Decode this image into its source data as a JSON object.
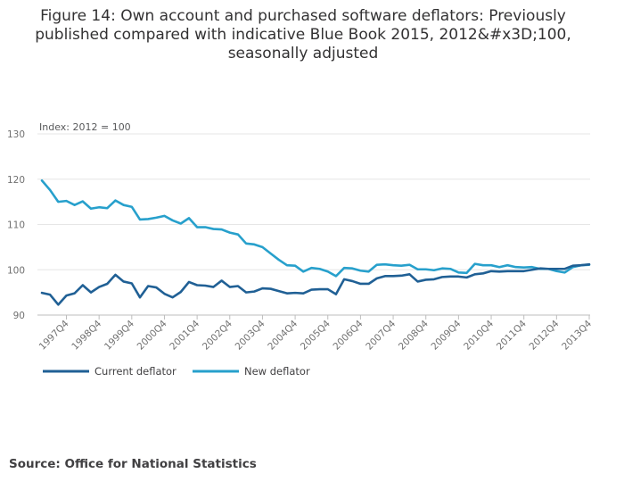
{
  "chart_data": {
    "type": "line",
    "title": "Figure 14: Own account and purchased software deflators: Previously published compared with indicative Blue Book 2015, 2012&#x3D;100, seasonally adjusted",
    "y_unit_label": "Index: 2012 = 100",
    "ylim": [
      90,
      130
    ],
    "yticks": [
      90,
      100,
      110,
      120,
      130
    ],
    "x_tick_labels": [
      "1997Q4",
      "1998Q4",
      "1999Q4",
      "2000Q4",
      "2001Q4",
      "2002Q4",
      "2003Q4",
      "2004Q4",
      "2005Q4",
      "2006Q4",
      "2007Q4",
      "2008Q4",
      "2009Q4",
      "2010Q4",
      "2011Q4",
      "2012Q4",
      "2013Q4"
    ],
    "x_start_label": "1997Q1",
    "n_points": 68,
    "series": [
      {
        "name": "Current deflator",
        "color": "#206095",
        "values": [
          94.9,
          94.5,
          92.3,
          94.3,
          94.8,
          96.6,
          95.0,
          96.2,
          96.9,
          98.9,
          97.4,
          97.0,
          93.9,
          96.4,
          96.1,
          94.7,
          93.9,
          95.1,
          97.3,
          96.6,
          96.5,
          96.2,
          97.6,
          96.2,
          96.4,
          95.0,
          95.2,
          95.9,
          95.8,
          95.3,
          94.8,
          94.9,
          94.8,
          95.6,
          95.7,
          95.7,
          94.6,
          97.9,
          97.5,
          96.9,
          96.9,
          98.1,
          98.6,
          98.6,
          98.7,
          99.0,
          97.4,
          97.8,
          97.9,
          98.4,
          98.5,
          98.5,
          98.3,
          99.0,
          99.2,
          99.7,
          99.6,
          99.7,
          99.7,
          99.7,
          100.0,
          100.3,
          100.2,
          100.2,
          100.2,
          100.9,
          101.0,
          101.2
        ]
      },
      {
        "name": "New deflator",
        "color": "#27a0cc",
        "values": [
          119.7,
          117.6,
          115.0,
          115.2,
          114.3,
          115.1,
          113.5,
          113.8,
          113.6,
          115.3,
          114.3,
          113.9,
          111.1,
          111.2,
          111.5,
          111.9,
          110.9,
          110.2,
          111.4,
          109.4,
          109.4,
          109.0,
          108.9,
          108.2,
          107.8,
          105.8,
          105.6,
          105.0,
          103.6,
          102.2,
          101.0,
          100.9,
          99.6,
          100.4,
          100.2,
          99.6,
          98.6,
          100.4,
          100.3,
          99.8,
          99.6,
          101.1,
          101.2,
          101.0,
          100.9,
          101.1,
          100.1,
          100.1,
          99.9,
          100.3,
          100.2,
          99.4,
          99.3,
          101.3,
          101.0,
          101.0,
          100.6,
          101.0,
          100.6,
          100.5,
          100.6,
          100.2,
          100.2,
          99.7,
          99.4,
          100.6,
          101.0,
          101.1
        ]
      }
    ]
  },
  "source": "Source: Office for National Statistics"
}
